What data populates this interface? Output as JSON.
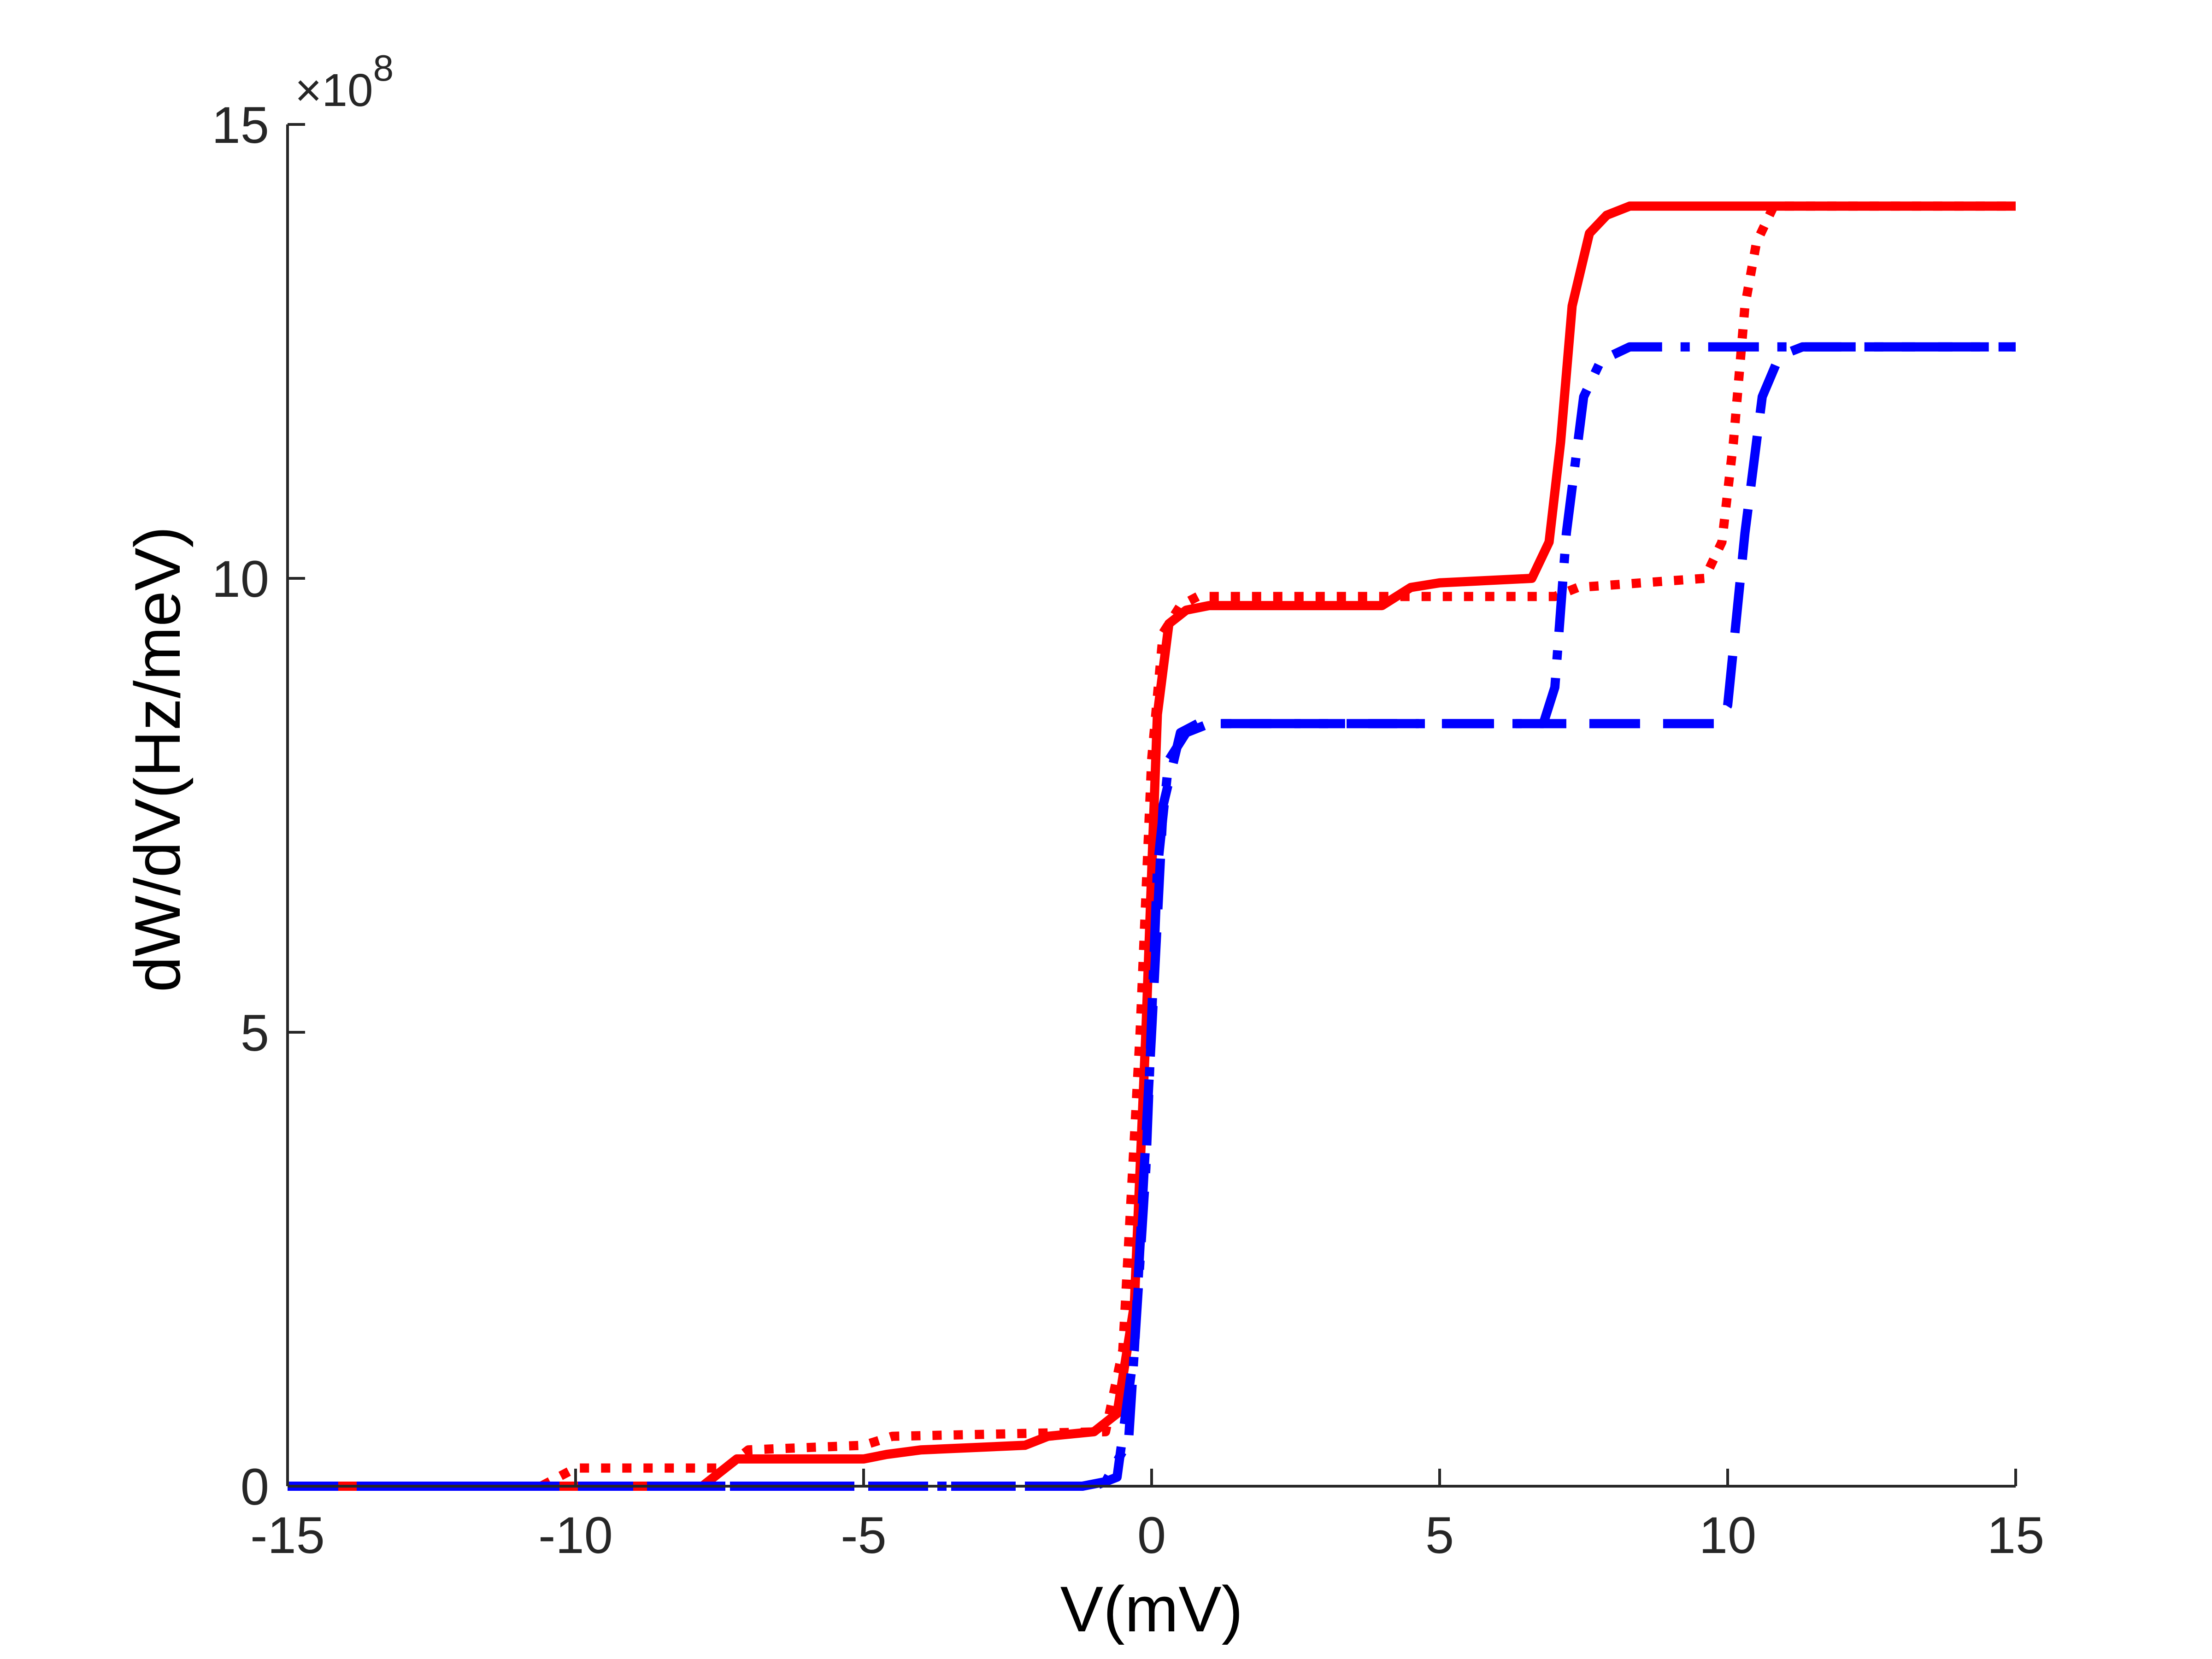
{
  "chart_data": {
    "type": "line",
    "title": "",
    "xlabel": "V(mV)",
    "ylabel": "dW/dV(Hz/meV)",
    "y_multiplier": "×10",
    "y_multiplier_exponent": "8",
    "xlim": [
      -15,
      15
    ],
    "ylim": [
      0,
      15
    ],
    "xticks": [
      -15,
      -10,
      -5,
      0,
      5,
      10,
      15
    ],
    "yticks": [
      0,
      5,
      10,
      15
    ],
    "xtick_labels": [
      "-15",
      "-10",
      "-5",
      "0",
      "5",
      "10",
      "15"
    ],
    "ytick_labels": [
      "0",
      "5",
      "10",
      "15"
    ],
    "grid": false,
    "legend": "none",
    "series": [
      {
        "style": "solid",
        "color": "#ff0000",
        "x": [
          -15,
          -7.8,
          -7.2,
          -5.0,
          -4.6,
          -4.0,
          -2.2,
          -1.8,
          -1.0,
          -0.6,
          -0.3,
          -0.1,
          0.1,
          0.3,
          0.6,
          1.0,
          4.0,
          4.5,
          5.0,
          6.6,
          6.9,
          7.1,
          7.3,
          7.6,
          7.9,
          8.3,
          15
        ],
        "values": [
          0,
          0,
          0.3,
          0.3,
          0.35,
          0.4,
          0.45,
          0.55,
          0.6,
          0.8,
          2.0,
          5.0,
          8.5,
          9.5,
          9.65,
          9.7,
          9.7,
          9.9,
          9.95,
          10.0,
          10.4,
          11.5,
          13.0,
          13.8,
          14.0,
          14.1,
          14.1
        ]
      },
      {
        "style": "dotted",
        "color": "#ff0000",
        "x": [
          -15,
          -10.6,
          -10.0,
          -7.4,
          -7.0,
          -5.0,
          -4.5,
          -0.8,
          -0.5,
          -0.2,
          0.0,
          0.2,
          0.5,
          0.8,
          7.0,
          7.4,
          9.6,
          9.9,
          10.1,
          10.3,
          10.5,
          10.8,
          15
        ],
        "values": [
          0,
          0,
          0.2,
          0.2,
          0.4,
          0.45,
          0.55,
          0.6,
          1.5,
          5.0,
          8.0,
          9.4,
          9.7,
          9.8,
          9.8,
          9.9,
          10.0,
          10.4,
          11.5,
          13.0,
          13.7,
          14.1,
          14.1
        ]
      },
      {
        "style": "dashdot",
        "color": "#0000ff",
        "x": [
          -15,
          -1.2,
          -0.8,
          -0.4,
          -0.1,
          0.1,
          0.3,
          0.6,
          1.0,
          6.8,
          7.0,
          7.2,
          7.5,
          7.8,
          8.3,
          15
        ],
        "values": [
          0,
          0,
          0.05,
          0.5,
          3.5,
          6.8,
          8.0,
          8.3,
          8.4,
          8.4,
          8.8,
          10.5,
          12.0,
          12.4,
          12.55,
          12.55
        ]
      },
      {
        "style": "dashed",
        "color": "#0000ff",
        "x": [
          -15,
          -1.0,
          -0.6,
          -0.3,
          0.0,
          0.2,
          0.5,
          0.8,
          9.8,
          10.0,
          10.3,
          10.6,
          10.9,
          11.3,
          15
        ],
        "values": [
          0,
          0,
          0.1,
          1.5,
          5.0,
          7.5,
          8.3,
          8.4,
          8.4,
          8.6,
          10.5,
          12.0,
          12.45,
          12.55,
          12.55
        ]
      }
    ]
  }
}
